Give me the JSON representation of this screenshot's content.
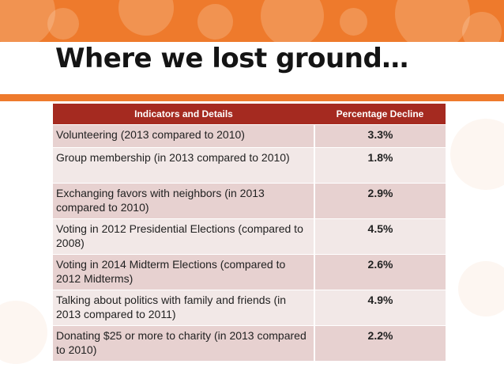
{
  "slide": {
    "title": "Where we lost ground…"
  },
  "table": {
    "headers": [
      "Indicators and Details",
      "Percentage Decline"
    ],
    "rows": [
      {
        "label": "Volunteering (2013 compared to 2010)",
        "value": "3.3%"
      },
      {
        "label": "Group membership (in 2013 compared to 2010)",
        "value": "1.8%"
      },
      {
        "label": "Exchanging favors with neighbors (in 2013 compared to 2010)",
        "value": "2.9%"
      },
      {
        "label": "Voting in 2012 Presidential Elections (compared to 2008)",
        "value": "4.5%"
      },
      {
        "label": "Voting in 2014 Midterm Elections (compared to 2012 Midterms)",
        "value": "2.6%"
      },
      {
        "label": "Talking about politics with family and friends (in 2013 compared to 2011)",
        "value": "4.9%"
      },
      {
        "label": "Donating $25 or more to charity (in 2013 compared to  2010)",
        "value": "2.2%"
      }
    ]
  },
  "colors": {
    "banner": "#ee7a2c",
    "header": "#a52a20",
    "row_odd": "#e7d1d0",
    "row_even": "#f2e8e7"
  }
}
